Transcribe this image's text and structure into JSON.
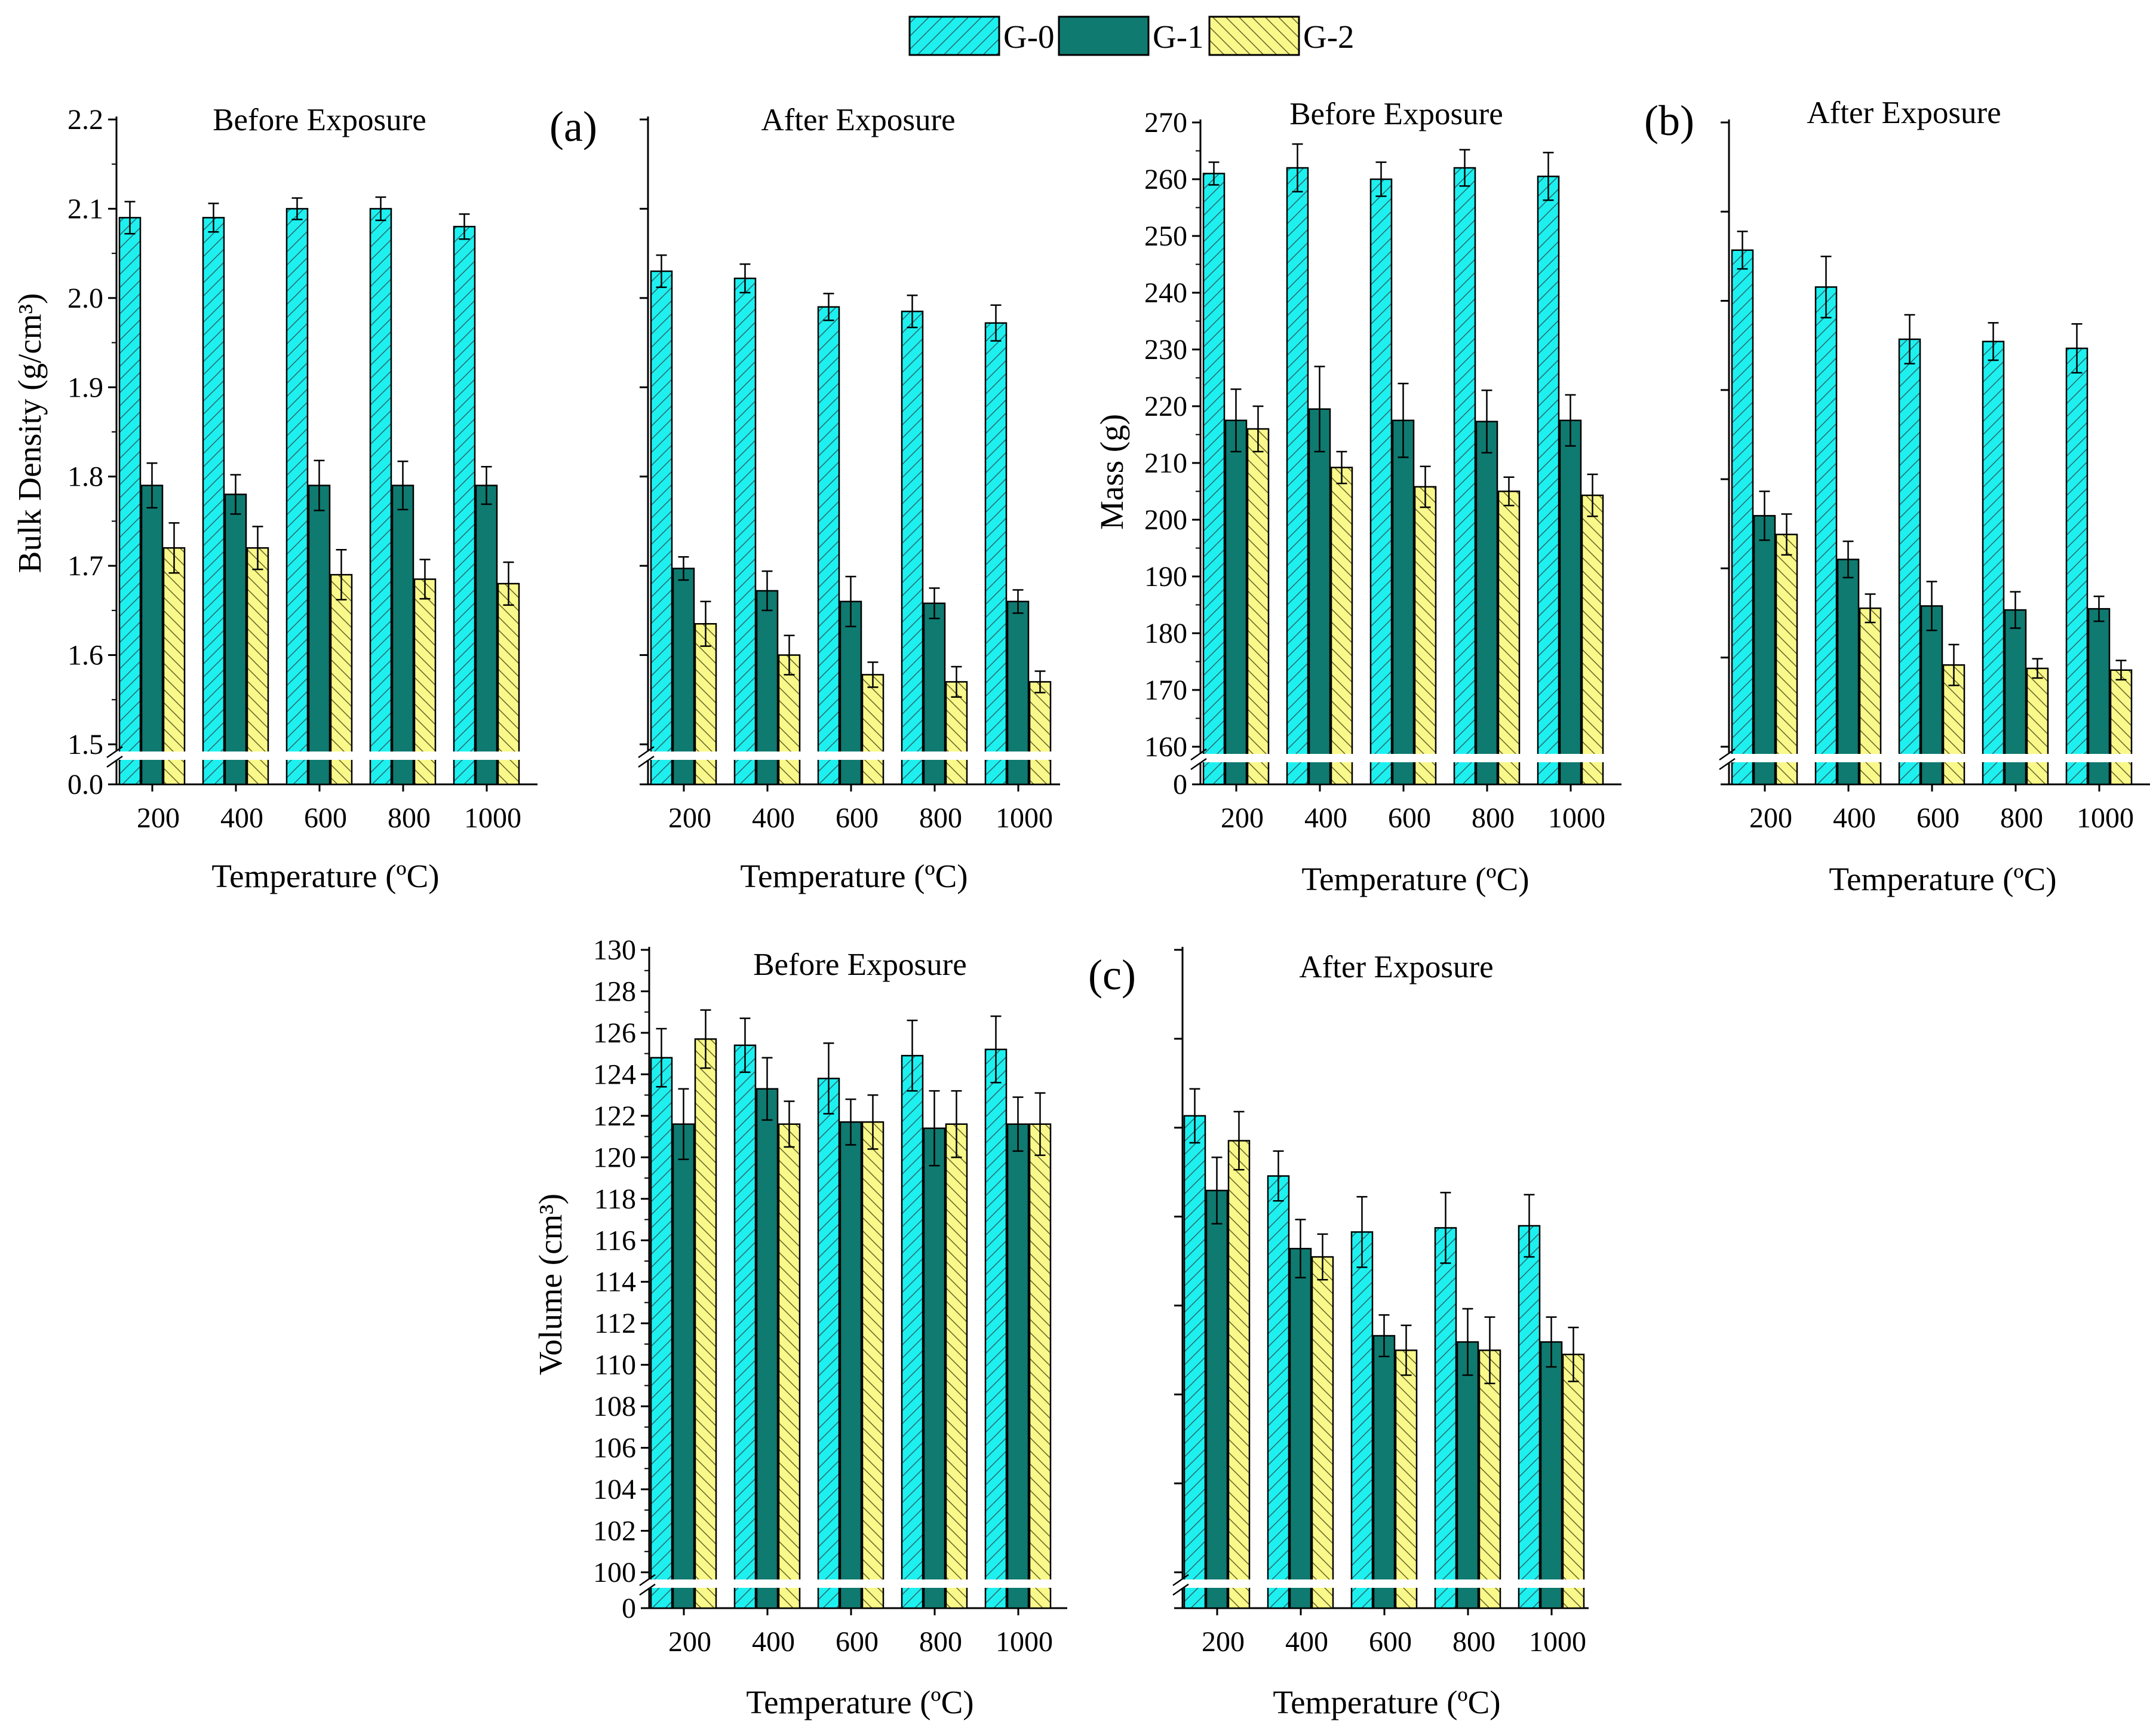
{
  "legend": [
    {
      "name": "G-0",
      "color": "#1ef0f0",
      "pattern": "hatch-forward"
    },
    {
      "name": "G-1",
      "color": "#0f7a70",
      "pattern": "solid"
    },
    {
      "name": "G-2",
      "color": "#f9f88a",
      "pattern": "hatch-back"
    }
  ],
  "chart_data": [
    {
      "type": "bar",
      "panel": "(a)",
      "title": "Before Exposure",
      "xlabel": "Temperature (ºC)",
      "ylabel": "Bulk Density (g/cm³)",
      "categories": [
        "200",
        "400",
        "600",
        "800",
        "1000"
      ],
      "ylim": [
        1.5,
        2.2
      ],
      "axis_break": true,
      "yticks": [
        "0.0",
        "1.5",
        "1.6",
        "1.7",
        "1.8",
        "1.9",
        "2.0",
        "2.1",
        "2.2"
      ],
      "series": [
        {
          "name": "G-0",
          "values": [
            2.09,
            2.09,
            2.1,
            2.1,
            2.08
          ],
          "errors": [
            0.018,
            0.016,
            0.012,
            0.013,
            0.014
          ]
        },
        {
          "name": "G-1",
          "values": [
            1.79,
            1.78,
            1.79,
            1.79,
            1.79
          ],
          "errors": [
            0.025,
            0.022,
            0.028,
            0.027,
            0.021
          ]
        },
        {
          "name": "G-2",
          "values": [
            1.72,
            1.72,
            1.69,
            1.685,
            1.68
          ],
          "errors": [
            0.028,
            0.024,
            0.028,
            0.022,
            0.024
          ]
        }
      ]
    },
    {
      "type": "bar",
      "panel": "",
      "title": "After Exposure",
      "xlabel": "Temperature (ºC)",
      "ylabel": "",
      "categories": [
        "200",
        "400",
        "600",
        "800",
        "1000"
      ],
      "ylim": [
        1.5,
        2.2
      ],
      "axis_break": true,
      "yticks": [],
      "series": [
        {
          "name": "G-0",
          "values": [
            2.03,
            2.022,
            1.99,
            1.985,
            1.972
          ],
          "errors": [
            0.018,
            0.016,
            0.015,
            0.018,
            0.02
          ]
        },
        {
          "name": "G-1",
          "values": [
            1.697,
            1.672,
            1.66,
            1.658,
            1.66
          ],
          "errors": [
            0.013,
            0.022,
            0.028,
            0.017,
            0.013
          ]
        },
        {
          "name": "G-2",
          "values": [
            1.635,
            1.6,
            1.578,
            1.57,
            1.57
          ],
          "errors": [
            0.025,
            0.022,
            0.014,
            0.017,
            0.012
          ]
        }
      ]
    },
    {
      "type": "bar",
      "panel": "(b)",
      "title": "Before Exposure",
      "xlabel": "Temperature (ºC)",
      "ylabel": "Mass (g)",
      "categories": [
        "200",
        "400",
        "600",
        "800",
        "1000"
      ],
      "ylim": [
        160,
        270
      ],
      "axis_break": true,
      "yticks": [
        "0",
        "160",
        "170",
        "180",
        "190",
        "200",
        "210",
        "220",
        "230",
        "240",
        "250",
        "260",
        "270"
      ],
      "series": [
        {
          "name": "G-0",
          "values": [
            261,
            262,
            260,
            262,
            260.5
          ],
          "errors": [
            2.0,
            4.2,
            3.0,
            3.2,
            4.2
          ]
        },
        {
          "name": "G-1",
          "values": [
            217.5,
            219.5,
            217.5,
            217.3,
            217.5
          ],
          "errors": [
            5.5,
            7.5,
            6.5,
            5.5,
            4.5
          ]
        },
        {
          "name": "G-2",
          "values": [
            216,
            209.2,
            205.8,
            205,
            204.3
          ],
          "errors": [
            4.0,
            2.8,
            3.6,
            2.5,
            3.7
          ]
        }
      ]
    },
    {
      "type": "bar",
      "panel": "",
      "title": "After Exposure",
      "xlabel": "Temperature (ºC)",
      "ylabel": "",
      "categories": [
        "200",
        "400",
        "600",
        "800",
        "1000"
      ],
      "ylim": [
        160,
        270
      ],
      "axis_break": true,
      "yticks": [],
      "series": [
        {
          "name": "G-0",
          "values": [
            247.5,
            241,
            231.8,
            231.4,
            230.2
          ],
          "errors": [
            3.3,
            5.4,
            4.3,
            3.3,
            4.3
          ]
        },
        {
          "name": "G-1",
          "values": [
            200.7,
            193,
            184.8,
            184.1,
            184.3
          ],
          "errors": [
            4.3,
            3.2,
            4.3,
            3.2,
            2.2
          ]
        },
        {
          "name": "G-2",
          "values": [
            197.4,
            184.4,
            174.4,
            173.8,
            173.5
          ],
          "errors": [
            3.6,
            2.5,
            3.6,
            1.7,
            1.7
          ]
        }
      ]
    },
    {
      "type": "bar",
      "panel": "(c)",
      "title": "Before Exposure",
      "xlabel": "Temperature (ºC)",
      "ylabel": "Volume (cm³)",
      "categories": [
        "200",
        "400",
        "600",
        "800",
        "1000"
      ],
      "ylim": [
        100,
        130
      ],
      "axis_break": true,
      "yticks": [
        "0",
        "100",
        "102",
        "104",
        "106",
        "108",
        "110",
        "112",
        "114",
        "116",
        "118",
        "120",
        "122",
        "124",
        "126",
        "128",
        "130"
      ],
      "series": [
        {
          "name": "G-0",
          "values": [
            124.8,
            125.4,
            123.8,
            124.9,
            125.2
          ],
          "errors": [
            1.4,
            1.3,
            1.7,
            1.7,
            1.6
          ]
        },
        {
          "name": "G-1",
          "values": [
            121.6,
            123.3,
            121.7,
            121.4,
            121.6
          ],
          "errors": [
            1.7,
            1.5,
            1.1,
            1.8,
            1.3
          ]
        },
        {
          "name": "G-2",
          "values": [
            125.7,
            121.6,
            121.7,
            121.6,
            121.6
          ],
          "errors": [
            1.4,
            1.1,
            1.3,
            1.6,
            1.5
          ]
        }
      ]
    },
    {
      "type": "bar",
      "panel": "",
      "title": "After Exposure",
      "xlabel": "Temperature (ºC)",
      "ylabel": "",
      "categories": [
        "200",
        "400",
        "600",
        "800",
        "1000"
      ],
      "ylim": [
        100,
        130
      ],
      "axis_break": true,
      "yticks": [],
      "series": [
        {
          "name": "G-0",
          "values": [
            122,
            119.1,
            116.4,
            116.6,
            116.7
          ],
          "errors": [
            1.3,
            1.2,
            1.7,
            1.7,
            1.5
          ]
        },
        {
          "name": "G-1",
          "values": [
            118.4,
            115.6,
            111.4,
            111.1,
            111.1
          ],
          "errors": [
            1.6,
            1.4,
            1.0,
            1.6,
            1.2
          ]
        },
        {
          "name": "G-2",
          "values": [
            120.8,
            115.2,
            110.7,
            110.7,
            110.5
          ],
          "errors": [
            1.4,
            1.1,
            1.2,
            1.6,
            1.3
          ]
        }
      ]
    }
  ]
}
